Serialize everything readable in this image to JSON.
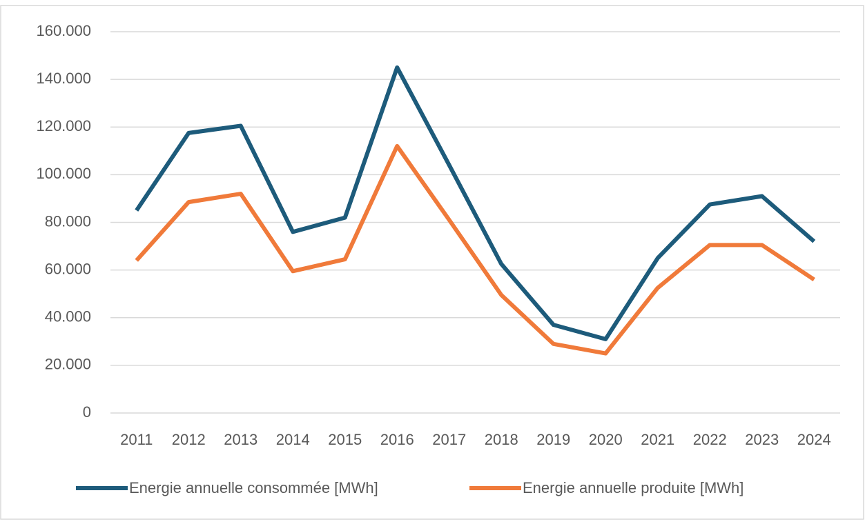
{
  "chart_data": {
    "type": "line",
    "categories": [
      "2011",
      "2012",
      "2013",
      "2014",
      "2015",
      "2016",
      "2017",
      "2018",
      "2019",
      "2020",
      "2021",
      "2022",
      "2023",
      "2024"
    ],
    "series": [
      {
        "name": "Energie annuelle consommée [MWh]",
        "color": "#1d5b7b",
        "values": [
          85000,
          117500,
          120500,
          76000,
          82000,
          145000,
          104000,
          62500,
          37000,
          31000,
          65000,
          87500,
          91000,
          72000
        ]
      },
      {
        "name": "Energie annuelle produite [MWh]",
        "color": "#f07a3a",
        "values": [
          64000,
          88500,
          92000,
          59500,
          64500,
          112000,
          81000,
          49500,
          29000,
          25000,
          52500,
          70500,
          70500,
          56000
        ]
      }
    ],
    "ylim": [
      0,
      160000
    ],
    "yticks": [
      0,
      {
        "value": 20000,
        "label": "20.000"
      },
      {
        "value": 40000,
        "label": "40.000"
      },
      {
        "value": 60000,
        "label": "60.000"
      },
      {
        "value": 80000,
        "label": "80.000"
      },
      {
        "value": 100000,
        "label": "100.000"
      },
      {
        "value": 120000,
        "label": "120.000"
      },
      {
        "value": 140000,
        "label": "140.000"
      },
      {
        "value": 160000,
        "label": "160.000"
      }
    ],
    "grid": true,
    "legend": "bottom"
  }
}
